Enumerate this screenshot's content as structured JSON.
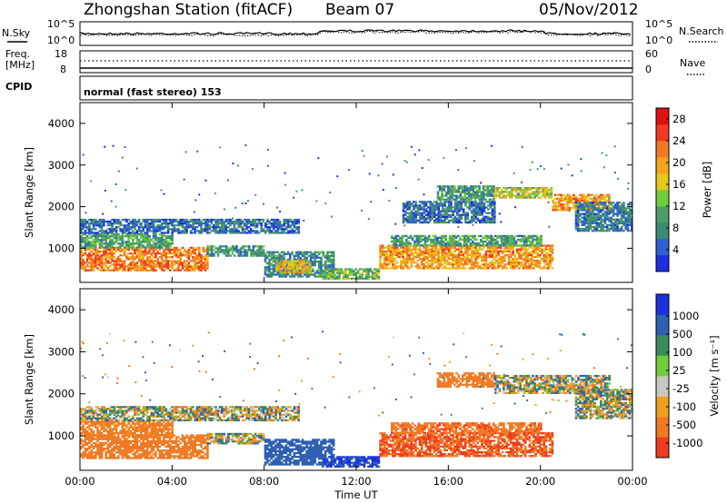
{
  "header": {
    "station": "Zhongshan Station (fitACF)",
    "beam": "Beam 07",
    "date": "05/Nov/2012"
  },
  "noise_panel": {
    "left_label": "N.Sky",
    "right_label": "N.Search",
    "y_top": "10^5",
    "y_bottom": "10^0",
    "right_y_top": "10^5",
    "right_y_bottom": "10^0"
  },
  "freq_panel": {
    "left_label_1": "Freq.",
    "left_label_2": "[MHz]",
    "right_label": "Nave",
    "y_top": "18",
    "y_bottom": "8",
    "right_y_top": "60",
    "right_y_bottom": "0",
    "cpid_label": "CPID",
    "cpid_text": "normal (fast stereo) 153"
  },
  "colors": {
    "power": [
      "#1b2fe0",
      "#2f5fd0",
      "#3b8a78",
      "#4f9b6a",
      "#6fcc3a",
      "#e8c61a",
      "#f5a21f",
      "#f07a24",
      "#ef3a1f",
      "#e01010"
    ],
    "velocity": [
      "#1b2fe0",
      "#2f5fb0",
      "#3b8a5a",
      "#6fcc3a",
      "#c8c8c0",
      "#f0a020",
      "#f07a24",
      "#ef3a1f"
    ]
  },
  "chart_data": [
    {
      "type": "heatmap",
      "title": "Power",
      "xlabel": "",
      "ylabel": "Slant Range [km]",
      "xlim": [
        0,
        24
      ],
      "ylim": [
        180,
        4500
      ],
      "x_ticks": [],
      "y_ticks": [
        "1000",
        "2000",
        "3000",
        "4000"
      ],
      "colorbar_label": "Power [dB]",
      "colorbar_ticks": [
        "4",
        "8",
        "12",
        "16",
        "20",
        "24",
        "28"
      ],
      "colorbar_range": [
        0,
        30
      ],
      "regions": [
        {
          "t": [
            0.0,
            5.5
          ],
          "r": [
            450,
            1000
          ],
          "v": 22
        },
        {
          "t": [
            0.0,
            4.0
          ],
          "r": [
            1000,
            1350
          ],
          "v": 10
        },
        {
          "t": [
            0.0,
            9.5
          ],
          "r": [
            1350,
            1700
          ],
          "v": 6
        },
        {
          "t": [
            5.5,
            8.0
          ],
          "r": [
            800,
            1050
          ],
          "v": 9
        },
        {
          "t": [
            8.0,
            11.0
          ],
          "r": [
            300,
            900
          ],
          "v": 8
        },
        {
          "t": [
            8.5,
            10.0
          ],
          "r": [
            400,
            700
          ],
          "v": 18
        },
        {
          "t": [
            10.5,
            13.0
          ],
          "r": [
            250,
            500
          ],
          "v": 12
        },
        {
          "t": [
            13.0,
            20.5
          ],
          "r": [
            500,
            1050
          ],
          "v": 20
        },
        {
          "t": [
            13.5,
            20.0
          ],
          "r": [
            1050,
            1300
          ],
          "v": 10
        },
        {
          "t": [
            15.5,
            18.0
          ],
          "r": [
            2150,
            2500
          ],
          "v": 9
        },
        {
          "t": [
            18.0,
            20.5
          ],
          "r": [
            2200,
            2450
          ],
          "v": 16
        },
        {
          "t": [
            20.5,
            23.0
          ],
          "r": [
            1900,
            2300
          ],
          "v": 20
        },
        {
          "t": [
            21.5,
            24.0
          ],
          "r": [
            1400,
            2100
          ],
          "v": 7
        },
        {
          "t": [
            14.0,
            18.0
          ],
          "r": [
            1600,
            2100
          ],
          "v": 6
        }
      ]
    },
    {
      "type": "heatmap",
      "title": "Velocity",
      "xlabel": "Time UT",
      "ylabel": "Slant Range [km]",
      "xlim": [
        0,
        24
      ],
      "ylim": [
        180,
        4500
      ],
      "x_ticks": [
        "00:00",
        "04:00",
        "08:00",
        "12:00",
        "16:00",
        "20:00",
        "00:00"
      ],
      "y_ticks": [
        "1000",
        "2000",
        "3000",
        "4000"
      ],
      "colorbar_label": "Velocity [m s⁻¹]",
      "colorbar_ticks": [
        "1000",
        "500",
        "100",
        "25",
        "-25",
        "-100",
        "-500",
        "-1000"
      ],
      "regions": [
        {
          "t": [
            0.0,
            5.5
          ],
          "r": [
            450,
            1000
          ],
          "v": -300
        },
        {
          "t": [
            0.0,
            4.0
          ],
          "r": [
            1000,
            1350
          ],
          "v": -200
        },
        {
          "t": [
            0.0,
            9.5
          ],
          "r": [
            1350,
            1700
          ],
          "v": 0
        },
        {
          "t": [
            5.5,
            8.0
          ],
          "r": [
            800,
            1050
          ],
          "v": 0
        },
        {
          "t": [
            8.0,
            11.0
          ],
          "r": [
            300,
            900
          ],
          "v": 300
        },
        {
          "t": [
            10.5,
            13.0
          ],
          "r": [
            250,
            500
          ],
          "v": 500
        },
        {
          "t": [
            13.0,
            20.5
          ],
          "r": [
            500,
            1050
          ],
          "v": -500
        },
        {
          "t": [
            13.5,
            20.0
          ],
          "r": [
            1050,
            1300
          ],
          "v": -400
        },
        {
          "t": [
            15.5,
            18.0
          ],
          "r": [
            2150,
            2500
          ],
          "v": -300
        },
        {
          "t": [
            18.0,
            23.0
          ],
          "r": [
            2000,
            2450
          ],
          "v": 0
        },
        {
          "t": [
            21.5,
            24.0
          ],
          "r": [
            1400,
            2100
          ],
          "v": 0
        }
      ]
    }
  ]
}
